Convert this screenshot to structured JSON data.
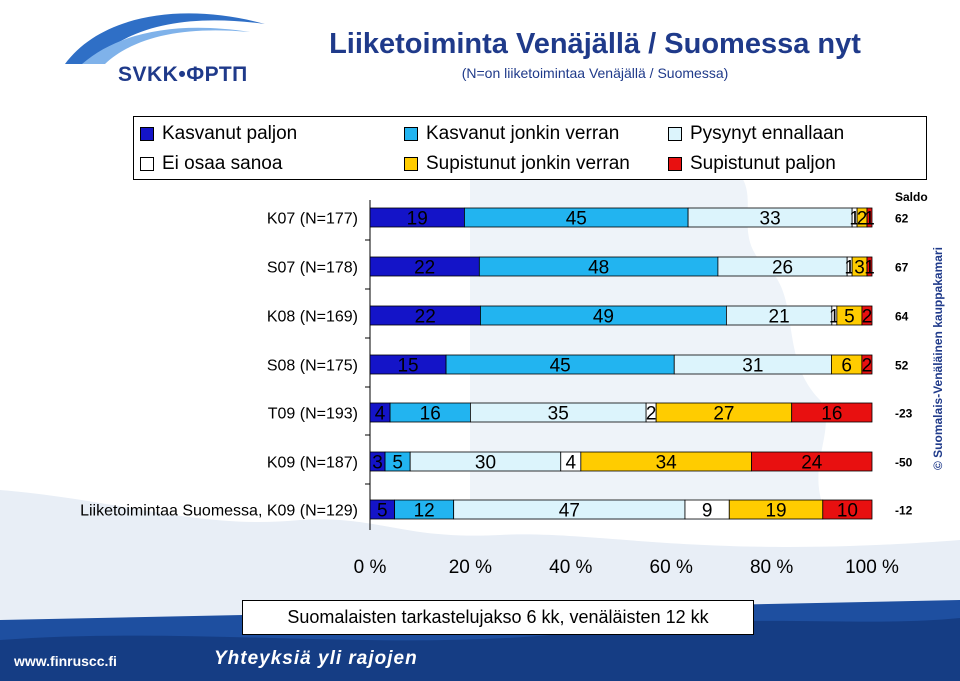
{
  "header": {
    "logo_text": "SVKK•ФРТП",
    "title": "Liiketoiminta Venäjällä / Suomessa nyt",
    "subtitle": "(N=on liiketoimintaa Venäjällä / Suomessa)"
  },
  "footer": {
    "url": "www.finruscc.fi",
    "slogan": "Yhteyksiä yli rajojen",
    "note": "Suomalaisten tarkastelujakso 6 kk, venäläisten 12 kk",
    "copyright": "© Suomalais-Venäläinen kauppakamari"
  },
  "colors": {
    "kasvanut_paljon": "#1414c8",
    "kasvanut_jonkin": "#22b4f0",
    "pysynyt": "#dcf4fc",
    "ei_osaa": "#ffffff",
    "supistunut_jonkin": "#ffcc00",
    "supistunut_paljon": "#e81010",
    "title": "#1f3a8a"
  },
  "chart_data": {
    "type": "bar",
    "orientation": "horizontal",
    "stacked": "100%",
    "categories": [
      "K07 (N=177)",
      "S07 (N=178)",
      "K08 (N=169)",
      "S08 (N=175)",
      "T09 (N=193)",
      "K09 (N=187)",
      "Liiketoimintaa Suomessa, K09 (N=129)"
    ],
    "series": [
      {
        "name": "Kasvanut paljon",
        "values": [
          19,
          22,
          22,
          15,
          4,
          3,
          5
        ]
      },
      {
        "name": "Kasvanut jonkin verran",
        "values": [
          45,
          48,
          49,
          45,
          16,
          5,
          12
        ]
      },
      {
        "name": "Pysynyt ennallaan",
        "values": [
          33,
          26,
          21,
          31,
          35,
          30,
          47
        ]
      },
      {
        "name": "Ei osaa sanoa",
        "values": [
          1,
          1,
          1,
          0,
          2,
          4,
          9
        ]
      },
      {
        "name": "Supistunut jonkin verran",
        "values": [
          2,
          3,
          5,
          6,
          27,
          34,
          19
        ]
      },
      {
        "name": "Supistunut paljon",
        "values": [
          1,
          1,
          2,
          2,
          16,
          24,
          10
        ]
      }
    ],
    "saldo_label": "Saldo",
    "saldo": [
      62,
      67,
      64,
      52,
      -23,
      -50,
      -12
    ],
    "x_ticks": [
      "0 %",
      "20 %",
      "40 %",
      "60 %",
      "80 %",
      "100 %"
    ],
    "xlim": [
      0,
      100
    ],
    "legend_position": "top",
    "grid": false
  }
}
